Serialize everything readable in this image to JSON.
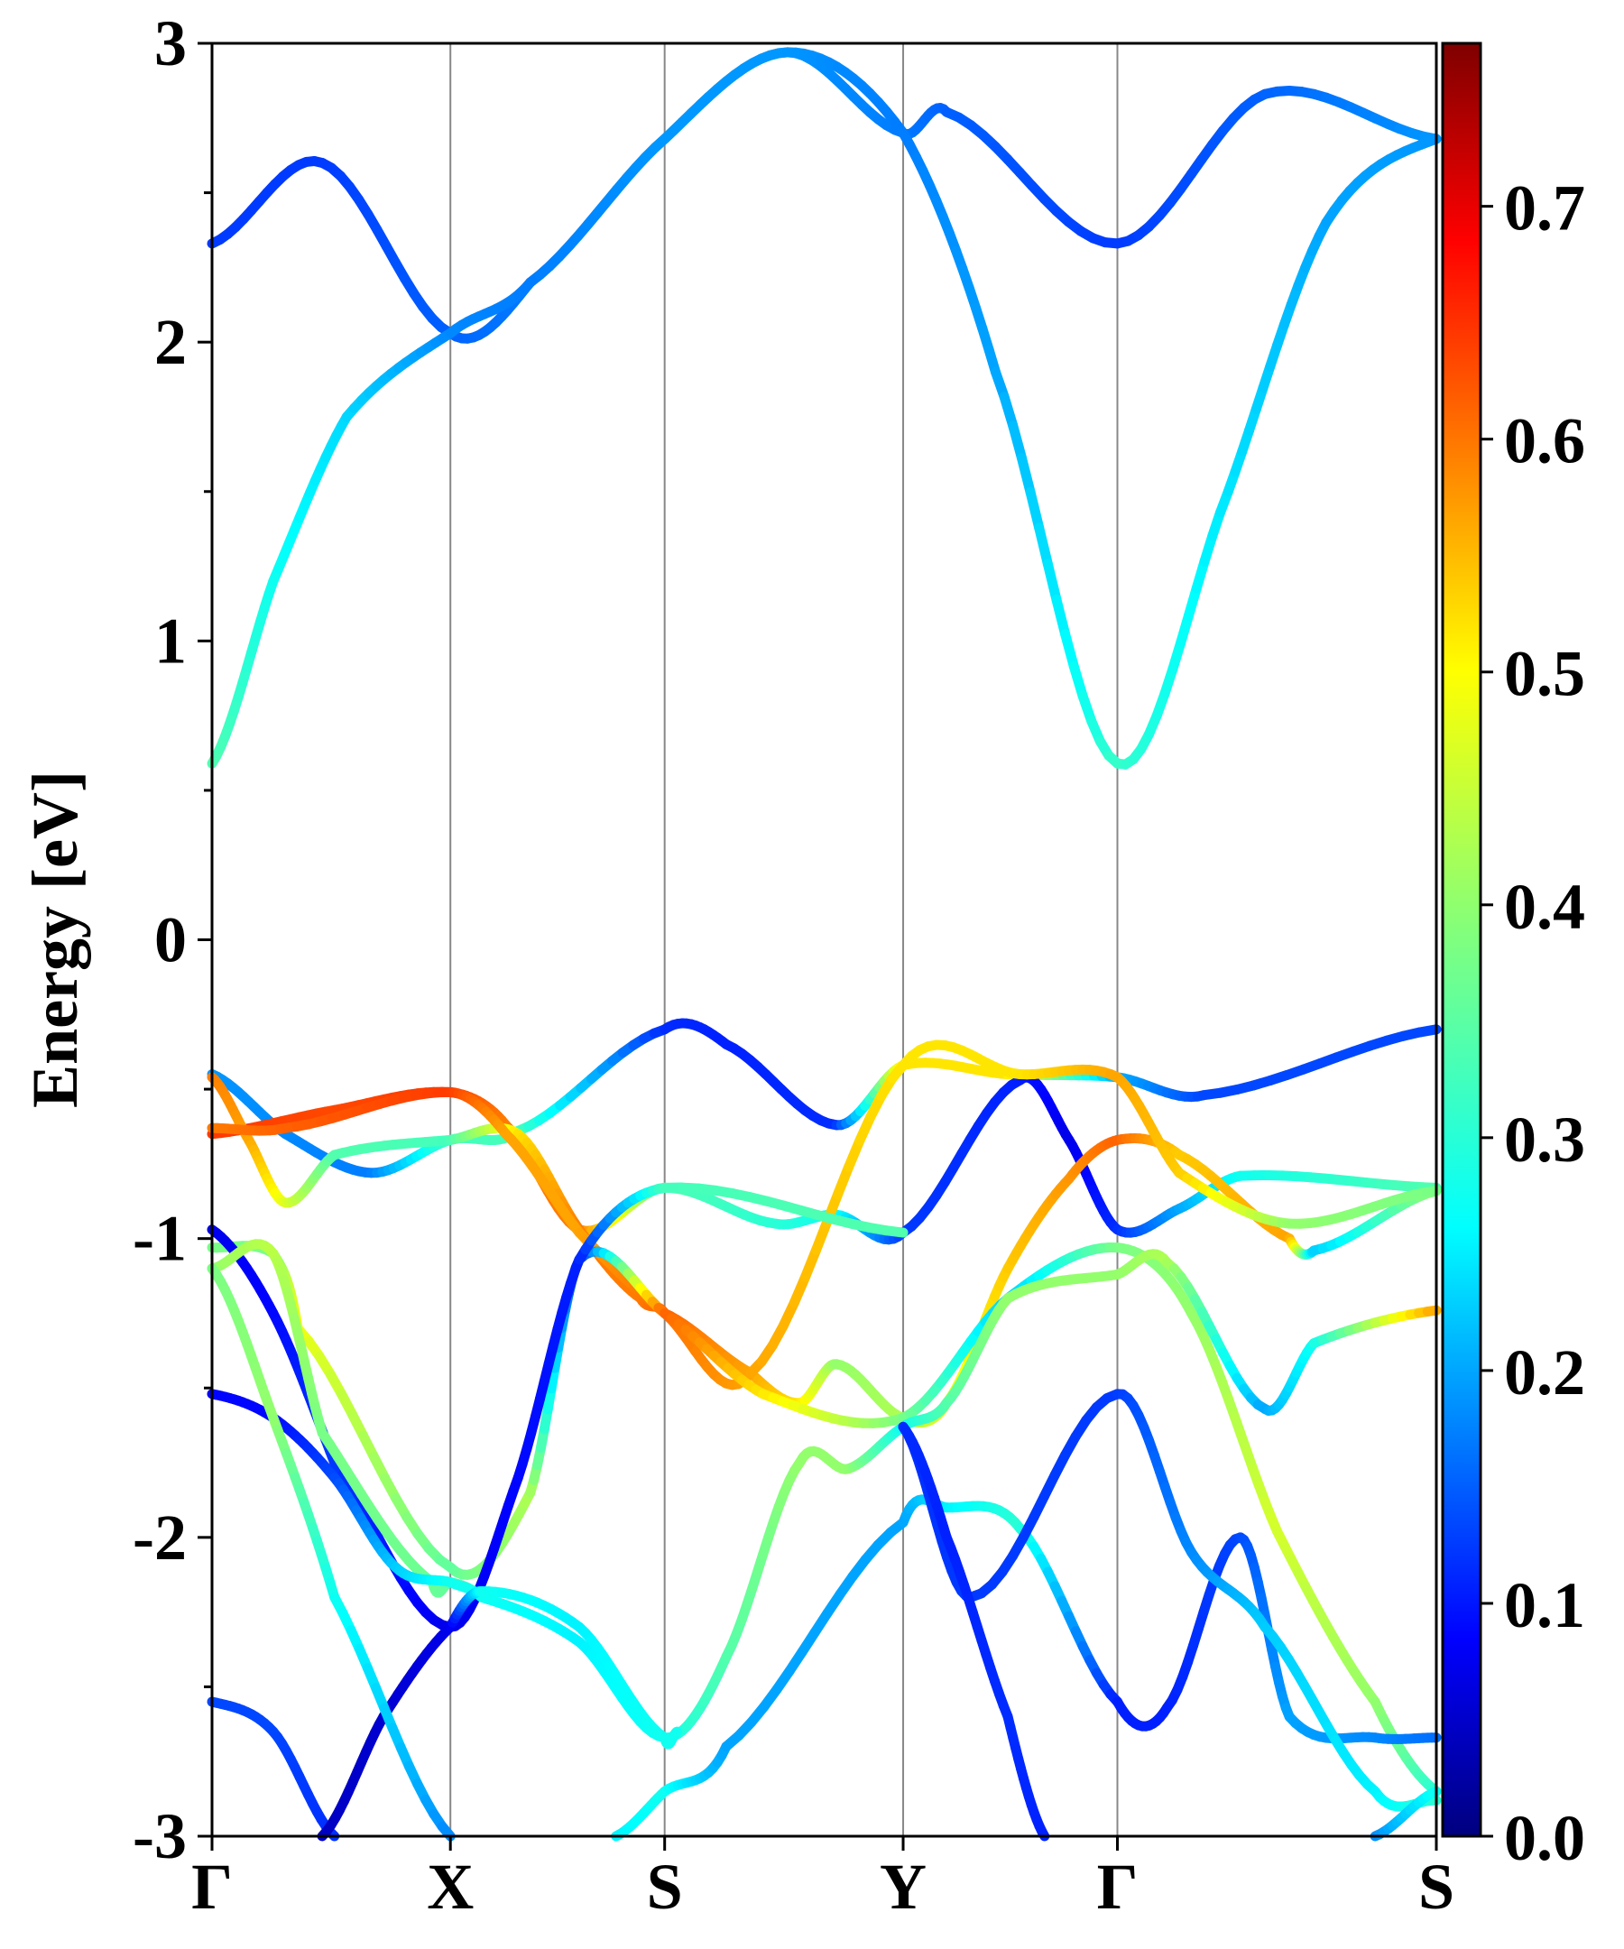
{
  "chart_data": {
    "type": "line",
    "title": "",
    "xlabel": "",
    "ylabel": "Energy [eV]",
    "ylim": [
      -3,
      3
    ],
    "x_range": [
      0,
      1
    ],
    "kpath": [
      {
        "label": "Γ",
        "x": 0.0
      },
      {
        "label": "X",
        "x": 0.1947
      },
      {
        "label": "S",
        "x": 0.3697
      },
      {
        "label": "Y",
        "x": 0.5645
      },
      {
        "label": "Γ",
        "x": 0.7395
      },
      {
        "label": "S",
        "x": 1.0
      }
    ],
    "y_ticks": [
      -3,
      -2,
      -1,
      0,
      1,
      2,
      3
    ],
    "y_tick_labels": [
      "-3",
      "-2",
      "-1",
      "0",
      "1",
      "2",
      "3"
    ],
    "colorbar": {
      "colormap": "jet",
      "range": [
        0.0,
        0.77
      ],
      "ticks": [
        0.0,
        0.1,
        0.2,
        0.3,
        0.4,
        0.5,
        0.6,
        0.7
      ],
      "tick_labels": [
        "0.0",
        "0.1",
        "0.2",
        "0.3",
        "0.4",
        "0.5",
        "0.6",
        "0.7"
      ]
    },
    "series": [
      {
        "name": "band-c2",
        "points": [
          [
            0.0,
            2.33,
            0.14
          ],
          [
            0.09,
            2.6,
            0.14
          ],
          [
            0.1947,
            2.03,
            0.17
          ],
          [
            0.26,
            2.2,
            0.19
          ],
          [
            0.3697,
            2.68,
            0.21
          ],
          [
            0.47,
            2.97,
            0.21
          ],
          [
            0.5645,
            2.7,
            0.19
          ],
          [
            0.6,
            2.77,
            0.17
          ],
          [
            0.7395,
            2.33,
            0.14
          ],
          [
            0.86,
            2.83,
            0.17
          ],
          [
            1.0,
            2.68,
            0.21
          ]
        ]
      },
      {
        "name": "band-c1",
        "points": [
          [
            0.0,
            0.59,
            0.35
          ],
          [
            0.05,
            1.2,
            0.3
          ],
          [
            0.11,
            1.75,
            0.26
          ],
          [
            0.1947,
            2.03,
            0.2
          ],
          [
            0.26,
            2.2,
            0.19
          ],
          [
            0.3697,
            2.68,
            0.21
          ],
          [
            0.47,
            2.97,
            0.21
          ],
          [
            0.5645,
            2.7,
            0.19
          ],
          [
            0.64,
            1.9,
            0.22
          ],
          [
            0.7395,
            0.59,
            0.33
          ],
          [
            0.83,
            1.5,
            0.27
          ],
          [
            0.91,
            2.4,
            0.22
          ],
          [
            1.0,
            2.68,
            0.21
          ]
        ]
      },
      {
        "name": "band-v1",
        "points": [
          [
            0.0,
            -0.45,
            0.21
          ],
          [
            0.06,
            -0.65,
            0.2
          ],
          [
            0.13,
            -0.78,
            0.19
          ],
          [
            0.1947,
            -0.67,
            0.34
          ],
          [
            0.25,
            -0.64,
            0.34
          ],
          [
            0.3697,
            -0.3,
            0.13
          ],
          [
            0.42,
            -0.35,
            0.12
          ],
          [
            0.51,
            -0.62,
            0.13
          ],
          [
            0.5645,
            -0.42,
            0.5
          ],
          [
            0.65,
            -0.45,
            0.5
          ],
          [
            0.7395,
            -0.46,
            0.23
          ],
          [
            0.81,
            -0.52,
            0.15
          ],
          [
            1.0,
            -0.3,
            0.15
          ]
        ]
      },
      {
        "name": "band-v2",
        "points": [
          [
            0.0,
            -0.65,
            0.63
          ],
          [
            0.1,
            -0.57,
            0.62
          ],
          [
            0.1947,
            -0.51,
            0.63
          ],
          [
            0.24,
            -0.62,
            0.58
          ],
          [
            0.3,
            -0.97,
            0.58
          ],
          [
            0.3697,
            -0.83,
            0.35
          ],
          [
            0.46,
            -0.95,
            0.32
          ],
          [
            0.51,
            -0.92,
            0.3
          ],
          [
            0.5645,
            -0.98,
            0.14
          ],
          [
            0.66,
            -0.47,
            0.12
          ],
          [
            0.7,
            -0.67,
            0.08
          ],
          [
            0.7395,
            -0.97,
            0.13
          ],
          [
            0.79,
            -0.9,
            0.22
          ],
          [
            0.84,
            -0.79,
            0.3
          ],
          [
            1.0,
            -0.83,
            0.35
          ]
        ]
      },
      {
        "name": "band-v3",
        "points": [
          [
            0.0,
            -0.46,
            0.58
          ],
          [
            0.03,
            -0.67,
            0.55
          ],
          [
            0.06,
            -0.88,
            0.46
          ],
          [
            0.1,
            -0.72,
            0.35
          ],
          [
            0.1947,
            -0.67,
            0.34
          ],
          [
            0.25,
            -0.65,
            0.5
          ],
          [
            0.3,
            -0.97,
            0.58
          ],
          [
            0.35,
            -1.2,
            0.58
          ],
          [
            0.3697,
            -1.25,
            0.6
          ],
          [
            0.44,
            -1.45,
            0.55
          ],
          [
            0.48,
            -1.55,
            0.5
          ],
          [
            0.51,
            -1.42,
            0.4
          ],
          [
            0.5645,
            -1.6,
            0.42
          ],
          [
            0.6,
            -1.55,
            0.46
          ],
          [
            0.65,
            -1.1,
            0.52
          ],
          [
            0.7,
            -0.8,
            0.56
          ],
          [
            0.7395,
            -0.67,
            0.6
          ],
          [
            0.79,
            -0.72,
            0.52
          ],
          [
            0.88,
            -1.0,
            0.55
          ],
          [
            0.9,
            -1.04,
            0.25
          ],
          [
            1.0,
            -0.84,
            0.4
          ]
        ]
      },
      {
        "name": "band-v4",
        "points": [
          [
            0.0,
            -0.63,
            0.58
          ],
          [
            0.06,
            -0.63,
            0.6
          ],
          [
            0.1947,
            -0.51,
            0.63
          ],
          [
            0.24,
            -0.65,
            0.55
          ],
          [
            0.3,
            -0.98,
            0.55
          ],
          [
            0.3697,
            -1.25,
            0.59
          ],
          [
            0.44,
            -1.45,
            0.55
          ],
          [
            0.5645,
            -0.42,
            0.5
          ],
          [
            0.66,
            -0.45,
            0.5
          ],
          [
            0.7395,
            -0.46,
            0.55
          ],
          [
            0.79,
            -0.78,
            0.52
          ],
          [
            0.88,
            -0.95,
            0.4
          ],
          [
            1.0,
            -0.84,
            0.38
          ]
        ]
      },
      {
        "name": "band-v5",
        "points": [
          [
            0.0,
            -1.03,
            0.38
          ],
          [
            0.05,
            -1.05,
            0.38
          ],
          [
            0.07,
            -1.3,
            0.47
          ],
          [
            0.1947,
            -2.1,
            0.36
          ],
          [
            0.26,
            -1.85,
            0.42
          ],
          [
            0.3,
            -1.07,
            0.12
          ],
          [
            0.3697,
            -1.25,
            0.6
          ],
          [
            0.45,
            -1.52,
            0.5
          ],
          [
            0.5645,
            -1.6,
            0.38
          ],
          [
            0.65,
            -1.2,
            0.25
          ],
          [
            0.7395,
            -1.03,
            0.38
          ],
          [
            0.8,
            -1.25,
            0.4
          ],
          [
            0.87,
            -1.98,
            0.45
          ],
          [
            0.95,
            -2.55,
            0.4
          ],
          [
            1.0,
            -2.85,
            0.32
          ]
        ]
      },
      {
        "name": "band-v6",
        "points": [
          [
            0.0,
            -0.97,
            0.08
          ],
          [
            0.05,
            -1.25,
            0.1
          ],
          [
            0.1,
            -1.75,
            0.14
          ],
          [
            0.1947,
            -2.3,
            0.08
          ],
          [
            0.25,
            -1.8,
            0.1
          ],
          [
            0.3,
            -1.07,
            0.12
          ],
          [
            0.3697,
            -0.83,
            0.34
          ],
          [
            0.5645,
            -0.98,
            0.35
          ]
        ]
      },
      {
        "name": "band-v7",
        "points": [
          [
            0.0,
            -1.1,
            0.4
          ],
          [
            0.05,
            -1.05,
            0.43
          ],
          [
            0.09,
            -1.65,
            0.38
          ],
          [
            0.18,
            -2.15,
            0.37
          ],
          [
            0.1947,
            -2.15,
            0.36
          ],
          [
            0.22,
            -2.2,
            0.3
          ],
          [
            0.3,
            -2.35,
            0.28
          ],
          [
            0.3697,
            -2.67,
            0.3
          ],
          [
            0.42,
            -2.4,
            0.35
          ],
          [
            0.48,
            -1.75,
            0.4
          ],
          [
            0.52,
            -1.77,
            0.4
          ],
          [
            0.5645,
            -1.63,
            0.3
          ],
          [
            0.6,
            -1.55,
            0.35
          ],
          [
            0.65,
            -1.2,
            0.4
          ],
          [
            0.7395,
            -1.12,
            0.4
          ],
          [
            0.78,
            -1.08,
            0.42
          ],
          [
            0.86,
            -1.57,
            0.22
          ],
          [
            0.9,
            -1.35,
            0.3
          ],
          [
            1.0,
            -1.24,
            0.55
          ]
        ]
      },
      {
        "name": "band-v8",
        "points": [
          [
            0.0,
            -1.52,
            0.1
          ],
          [
            0.05,
            -1.6,
            0.1
          ],
          [
            0.1,
            -1.8,
            0.15
          ],
          [
            0.15,
            -2.1,
            0.25
          ],
          [
            0.1947,
            -2.15,
            0.3
          ],
          [
            0.22,
            -2.2,
            0.3
          ],
          [
            0.3,
            -2.35,
            0.28
          ],
          [
            0.3697,
            -2.67,
            0.3
          ]
        ]
      },
      {
        "name": "band-v9",
        "points": [
          [
            0.0,
            -2.55,
            0.15
          ],
          [
            0.05,
            -2.65,
            0.15
          ],
          [
            0.1,
            -3.0,
            0.13
          ]
        ]
      },
      {
        "name": "band-v10",
        "points": [
          [
            0.09,
            -3.0,
            0.05
          ],
          [
            0.14,
            -2.6,
            0.06
          ],
          [
            0.1947,
            -2.3,
            0.08
          ],
          [
            0.22,
            -2.18,
            0.3
          ],
          [
            0.3,
            -2.3,
            0.28
          ],
          [
            0.3697,
            -2.67,
            0.3
          ],
          [
            0.38,
            -2.65,
            0.3
          ]
        ]
      },
      {
        "name": "band-v11",
        "points": [
          [
            0.0,
            -1.1,
            0.38
          ],
          [
            0.05,
            -1.6,
            0.4
          ],
          [
            0.1,
            -2.2,
            0.3
          ],
          [
            0.1947,
            -3.0,
            0.2
          ]
        ]
      },
      {
        "name": "band-v12",
        "points": [
          [
            0.33,
            -3.0,
            0.28
          ],
          [
            0.3697,
            -2.85,
            0.3
          ],
          [
            0.42,
            -2.7,
            0.22
          ],
          [
            0.5645,
            -1.95,
            0.22
          ],
          [
            0.6,
            -1.9,
            0.28
          ],
          [
            0.66,
            -1.97,
            0.32
          ],
          [
            0.7395,
            -2.55,
            0.12
          ],
          [
            0.78,
            -2.57,
            0.12
          ],
          [
            0.84,
            -2.0,
            0.15
          ],
          [
            0.88,
            -2.6,
            0.22
          ],
          [
            0.95,
            -2.67,
            0.2
          ],
          [
            1.0,
            -2.67,
            0.18
          ]
        ]
      },
      {
        "name": "band-v13",
        "points": [
          [
            0.5645,
            -1.63,
            0.13
          ],
          [
            0.62,
            -2.2,
            0.14
          ],
          [
            0.7395,
            -1.52,
            0.14
          ],
          [
            0.8,
            -2.05,
            0.2
          ],
          [
            0.86,
            -2.3,
            0.25
          ],
          [
            0.95,
            -2.85,
            0.28
          ],
          [
            1.0,
            -2.88,
            0.32
          ]
        ]
      },
      {
        "name": "band-v14",
        "points": [
          [
            0.5645,
            -1.63,
            0.13
          ],
          [
            0.6,
            -2.0,
            0.12
          ],
          [
            0.65,
            -2.6,
            0.13
          ],
          [
            0.68,
            -3.0,
            0.12
          ]
        ]
      },
      {
        "name": "band-v15",
        "points": [
          [
            0.95,
            -3.0,
            0.2
          ],
          [
            1.0,
            -2.85,
            0.3
          ]
        ]
      }
    ]
  }
}
